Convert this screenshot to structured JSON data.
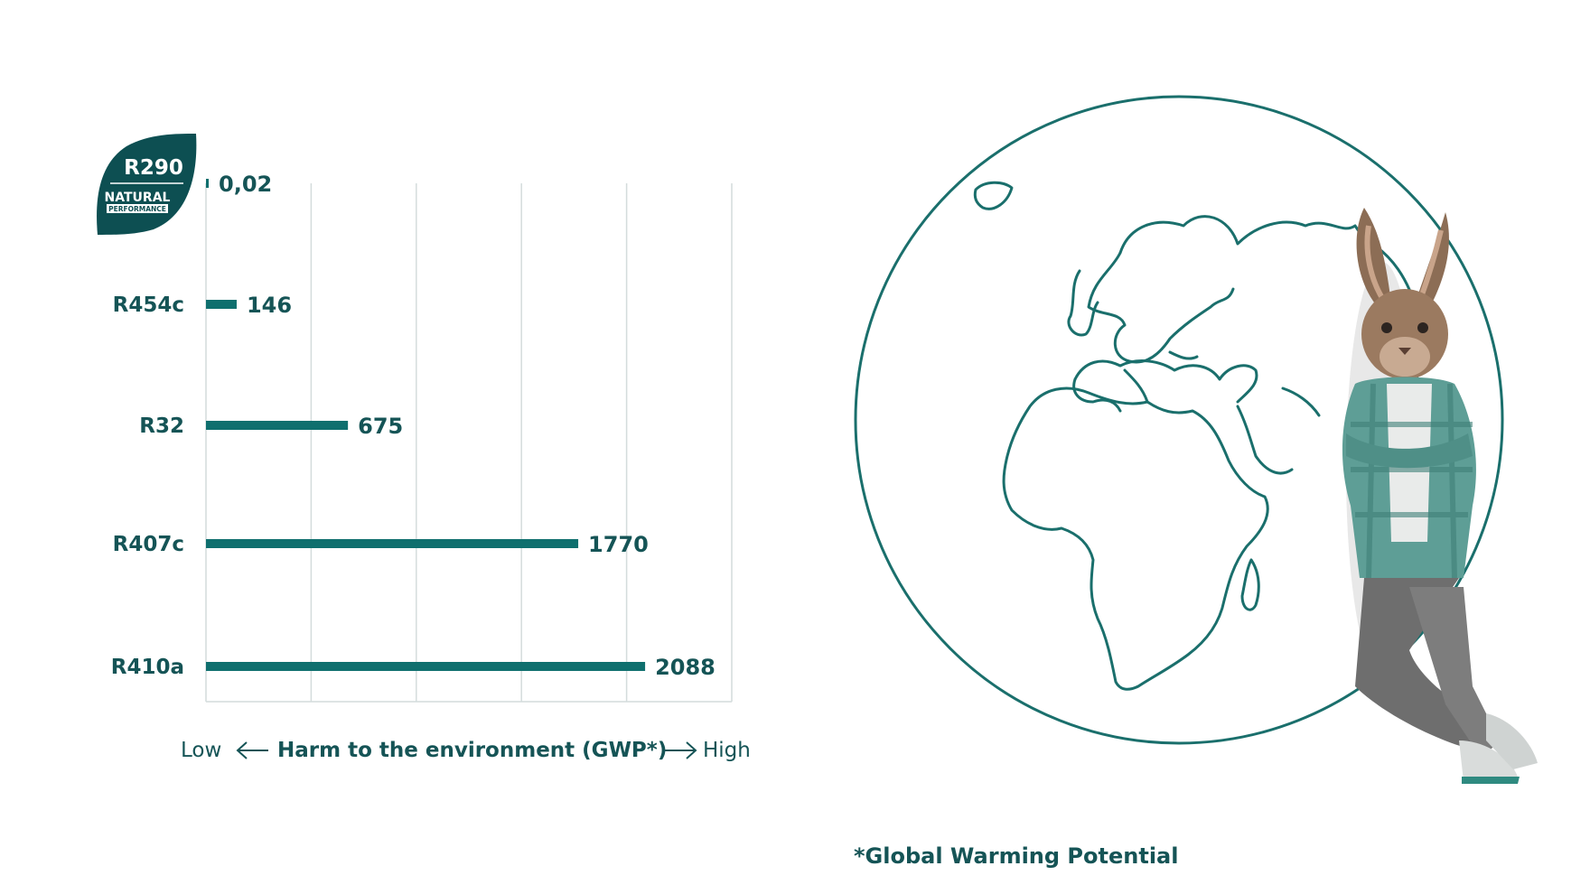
{
  "badge": {
    "code": "R290",
    "line1": "NATURAL",
    "line2": "PERFORMANCE"
  },
  "chart_data": {
    "type": "bar",
    "orientation": "horizontal",
    "categories": [
      "R290",
      "R454c",
      "R32",
      "R407c",
      "R410a"
    ],
    "values": [
      0.02,
      146,
      675,
      1770,
      2088
    ],
    "value_labels": [
      "0,02",
      "146",
      "675",
      "1770",
      "2088"
    ],
    "xlim": [
      0,
      2500
    ],
    "grid": true,
    "bar_color": "#0f6f6e",
    "axis_caption": {
      "low": "Low",
      "label": "Harm to the environment (GWP*)",
      "high": "High"
    }
  },
  "footnote": "*Global Warming Potential",
  "colors": {
    "primary": "#155456",
    "bar": "#0f6f6e",
    "grid": "#d4dcdc",
    "globe": "#1a6f6c"
  },
  "illustration": {
    "globe_icon": "earth-outline-icon",
    "mascot_icon": "hare-mascot-icon"
  }
}
